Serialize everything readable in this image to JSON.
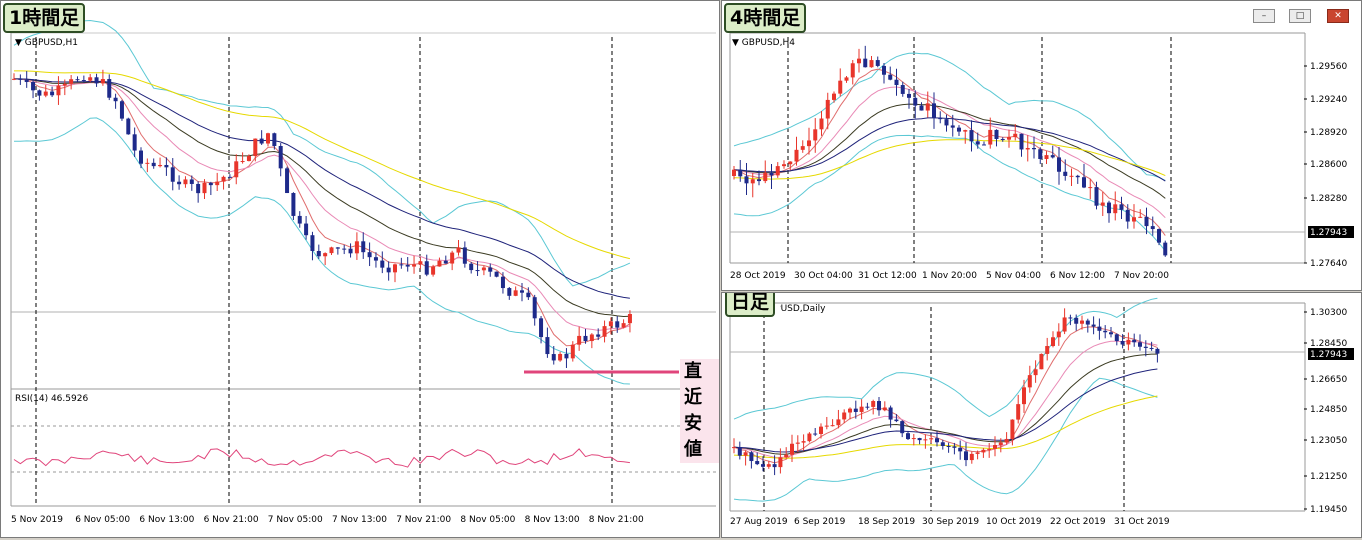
{
  "labels": {
    "h1": "1時間足",
    "h4": "4時間足",
    "d1": "日足",
    "recent_low": "直近安値"
  },
  "h1": {
    "symbol": "GBPUSD,H1",
    "rsi_label": "RSI(14) 46.5926",
    "x_labels": [
      "5 Nov 2019",
      "6 Nov 05:00",
      "6 Nov 13:00",
      "6 Nov 21:00",
      "7 Nov 05:00",
      "7 Nov 13:00",
      "7 Nov 21:00",
      "8 Nov 05:00",
      "8 Nov 13:00",
      "8 Nov 21:00"
    ]
  },
  "h4": {
    "symbol": "GBPUSD,H4",
    "y_labels": [
      "1.29560",
      "1.29240",
      "1.28920",
      "1.28600",
      "1.28280",
      "1.27943",
      "1.27640"
    ],
    "current_price": "1.27943",
    "x_labels": [
      "28 Oct 2019",
      "30 Oct 04:00",
      "31 Oct 12:00",
      "1 Nov 20:00",
      "5 Nov 04:00",
      "6 Nov 12:00",
      "7 Nov 20:00"
    ]
  },
  "d1": {
    "symbol": "GBPUSD,Daily",
    "y_labels": [
      "1.30300",
      "1.28450",
      "1.27943",
      "1.26650",
      "1.24850",
      "1.23050",
      "1.21250",
      "1.19450"
    ],
    "current_price": "1.27943",
    "x_labels": [
      "27 Aug 2019",
      "6 Sep 2019",
      "18 Sep 2019",
      "30 Sep 2019",
      "10 Oct 2019",
      "22 Oct 2019",
      "31 Oct 2019"
    ]
  },
  "window_buttons": {
    "minimize": "–",
    "maximize": "□",
    "close": "✕"
  },
  "colors": {
    "bull": "#e8352b",
    "bear": "#1e2a8a",
    "grid": "#000000",
    "rsi": "#e0457b",
    "bollinger": "#5bc8d4"
  }
}
